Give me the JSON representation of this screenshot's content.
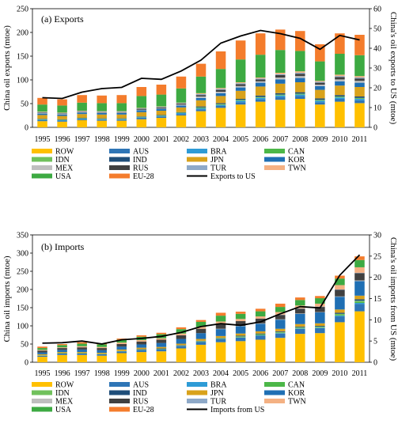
{
  "colors": {
    "ROW": "#FFC000",
    "AUS": "#2E75B6",
    "BRA": "#2E9BD6",
    "CAN": "#4CB748",
    "IDN": "#70C15C",
    "IND": "#1F4E79",
    "JPN": "#D9A21B",
    "KOR": "#1F6FB4",
    "MEX": "#BFBFBF",
    "RUS": "#404040",
    "TUR": "#8EA9C8",
    "TWN": "#F4B183",
    "USA": "#3DAA42",
    "EU-28": "#F47C2C",
    "line": "#000000"
  },
  "chart_data": [
    {
      "type": "bar",
      "stacked": true,
      "title": "(a) Exports",
      "ylabel": "China oil exports (mtoe)",
      "y2label": "China's oil exports to US (mtoe)",
      "ylim": [
        0,
        250
      ],
      "yticks": [
        0,
        50,
        100,
        150,
        200,
        250
      ],
      "y2lim": [
        0,
        60
      ],
      "y2ticks": [
        0,
        10,
        20,
        30,
        40,
        50,
        60
      ],
      "categories": [
        "1995",
        "1996",
        "1997",
        "1998",
        "1999",
        "2000",
        "2001",
        "2002",
        "2003",
        "2004",
        "2005",
        "2006",
        "2007",
        "2008",
        "2009",
        "2010",
        "2011"
      ],
      "series": [
        {
          "name": "ROW",
          "values": [
            13,
            12,
            15,
            14,
            14,
            17,
            20,
            25,
            34,
            41,
            48,
            54,
            58,
            60,
            48,
            54,
            51
          ]
        },
        {
          "name": "AUS",
          "values": [
            2,
            2,
            2,
            2,
            2,
            3,
            3,
            3,
            4,
            4,
            5,
            5,
            6,
            6,
            5,
            6,
            6
          ]
        },
        {
          "name": "BRA",
          "values": [
            1,
            1,
            1,
            1,
            1,
            1,
            1,
            2,
            2,
            2,
            3,
            3,
            3,
            3,
            3,
            3,
            3
          ]
        },
        {
          "name": "CAN",
          "values": [
            0,
            0,
            0,
            0,
            0,
            0,
            0,
            0,
            0,
            0,
            0,
            0,
            0,
            0,
            0,
            0,
            0
          ]
        },
        {
          "name": "IDN",
          "values": [
            1,
            1,
            1,
            1,
            1,
            1,
            1,
            1,
            2,
            2,
            2,
            2,
            2,
            2,
            2,
            2,
            2
          ]
        },
        {
          "name": "IND",
          "values": [
            1,
            1,
            1,
            1,
            1,
            1,
            1,
            1,
            2,
            2,
            2,
            3,
            3,
            3,
            3,
            3,
            3
          ]
        },
        {
          "name": "JPN",
          "values": [
            8,
            7,
            8,
            8,
            8,
            9,
            9,
            10,
            13,
            15,
            17,
            19,
            20,
            21,
            18,
            20,
            20
          ]
        },
        {
          "name": "KOR",
          "values": [
            3,
            3,
            3,
            3,
            3,
            4,
            4,
            4,
            5,
            6,
            7,
            8,
            9,
            9,
            8,
            9,
            9
          ]
        },
        {
          "name": "MEX",
          "values": [
            1,
            1,
            1,
            1,
            1,
            1,
            1,
            2,
            3,
            3,
            3,
            3,
            4,
            4,
            3,
            4,
            4
          ]
        },
        {
          "name": "RUS",
          "values": [
            1,
            1,
            1,
            1,
            1,
            2,
            2,
            2,
            3,
            4,
            4,
            4,
            5,
            5,
            4,
            5,
            5
          ]
        },
        {
          "name": "TUR",
          "values": [
            1,
            1,
            1,
            1,
            1,
            1,
            1,
            1,
            2,
            2,
            2,
            2,
            2,
            2,
            2,
            2,
            2
          ]
        },
        {
          "name": "TWN",
          "values": [
            1,
            1,
            1,
            1,
            1,
            1,
            1,
            1,
            2,
            2,
            2,
            2,
            3,
            3,
            2,
            3,
            3
          ]
        },
        {
          "name": "USA",
          "values": [
            15,
            15,
            17,
            17,
            17,
            25,
            25,
            30,
            35,
            40,
            48,
            48,
            48,
            43,
            41,
            44,
            44
          ]
        },
        {
          "name": "EU-28",
          "values": [
            14,
            13,
            16,
            16,
            17,
            19,
            21,
            25,
            27,
            37,
            40,
            45,
            43,
            42,
            36,
            43,
            43
          ]
        }
      ],
      "line": {
        "name": "Exports to US",
        "axis": "right",
        "values": [
          15,
          14.6,
          17.8,
          19.6,
          20.2,
          24.8,
          24.3,
          28.5,
          34,
          42.6,
          46.2,
          49,
          47.4,
          45,
          39.5,
          46.5,
          44.2
        ]
      }
    },
    {
      "type": "bar",
      "stacked": true,
      "title": "(b) Imports",
      "ylabel": "China oil imports (mtoe)",
      "y2label": "China's oil imports  from US (mtoe)",
      "ylim": [
        0,
        350
      ],
      "yticks": [
        0,
        50,
        100,
        150,
        200,
        250,
        300,
        350
      ],
      "y2lim": [
        0,
        30
      ],
      "y2ticks": [
        0,
        5,
        10,
        15,
        20,
        25,
        30
      ],
      "categories": [
        "1995",
        "1996",
        "1997",
        "1998",
        "1999",
        "2000",
        "2001",
        "2002",
        "2003",
        "2004",
        "2005",
        "2006",
        "2007",
        "2008",
        "2009",
        "2010",
        "2011"
      ],
      "series": [
        {
          "name": "ROW",
          "values": [
            15,
            20,
            20,
            18,
            25,
            28,
            30,
            38,
            48,
            55,
            58,
            62,
            67,
            78,
            80,
            110,
            140
          ]
        },
        {
          "name": "AUS",
          "values": [
            3,
            4,
            4,
            4,
            5,
            6,
            6,
            7,
            8,
            9,
            10,
            11,
            12,
            14,
            14,
            16,
            20
          ]
        },
        {
          "name": "BRA",
          "values": [
            0,
            0,
            0,
            0,
            0,
            0,
            0,
            0,
            0,
            0,
            0,
            1,
            1,
            1,
            1,
            2,
            3
          ]
        },
        {
          "name": "CAN",
          "values": [
            0,
            0,
            0,
            0,
            0,
            0,
            0,
            0,
            1,
            1,
            1,
            1,
            1,
            1,
            1,
            2,
            3
          ]
        },
        {
          "name": "IDN",
          "values": [
            1,
            1,
            1,
            1,
            1,
            1,
            1,
            1,
            1,
            1,
            2,
            2,
            2,
            2,
            2,
            3,
            3
          ]
        },
        {
          "name": "IND",
          "values": [
            0,
            0,
            0,
            0,
            0,
            1,
            1,
            1,
            1,
            1,
            2,
            2,
            2,
            2,
            2,
            3,
            4
          ]
        },
        {
          "name": "JPN",
          "values": [
            3,
            3,
            3,
            3,
            4,
            4,
            4,
            4,
            5,
            5,
            6,
            6,
            7,
            7,
            7,
            9,
            10
          ]
        },
        {
          "name": "KOR",
          "values": [
            5,
            6,
            7,
            7,
            8,
            9,
            11,
            13,
            16,
            19,
            20,
            21,
            25,
            28,
            30,
            35,
            40
          ]
        },
        {
          "name": "MEX",
          "values": [
            0,
            0,
            0,
            0,
            0,
            0,
            0,
            0,
            0,
            1,
            1,
            1,
            1,
            1,
            1,
            1,
            2
          ]
        },
        {
          "name": "RUS",
          "values": [
            5,
            5,
            6,
            6,
            7,
            8,
            9,
            10,
            12,
            14,
            13,
            13,
            12,
            13,
            14,
            18,
            20
          ]
        },
        {
          "name": "TUR",
          "values": [
            0,
            0,
            0,
            0,
            0,
            0,
            0,
            0,
            0,
            0,
            0,
            0,
            1,
            1,
            1,
            1,
            1
          ]
        },
        {
          "name": "TWN",
          "values": [
            2,
            2,
            3,
            3,
            4,
            4,
            4,
            5,
            5,
            6,
            6,
            6,
            7,
            8,
            8,
            12,
            15
          ]
        },
        {
          "name": "USA",
          "values": [
            5,
            6,
            7,
            7,
            8,
            9,
            11,
            12,
            14,
            16,
            14,
            14,
            14,
            15,
            15,
            18,
            20
          ]
        },
        {
          "name": "EU-28",
          "values": [
            4,
            3,
            4,
            3,
            3,
            4,
            4,
            5,
            5,
            8,
            6,
            7,
            9,
            7,
            6,
            8,
            10
          ]
        }
      ],
      "line": {
        "name": "Imports from US",
        "axis": "right",
        "values": [
          4.5,
          4.6,
          5,
          4.3,
          5.3,
          5.6,
          6.1,
          7,
          8.4,
          9.1,
          8.7,
          9.5,
          11.4,
          13.1,
          12.8,
          20.5,
          25.3
        ]
      }
    }
  ]
}
